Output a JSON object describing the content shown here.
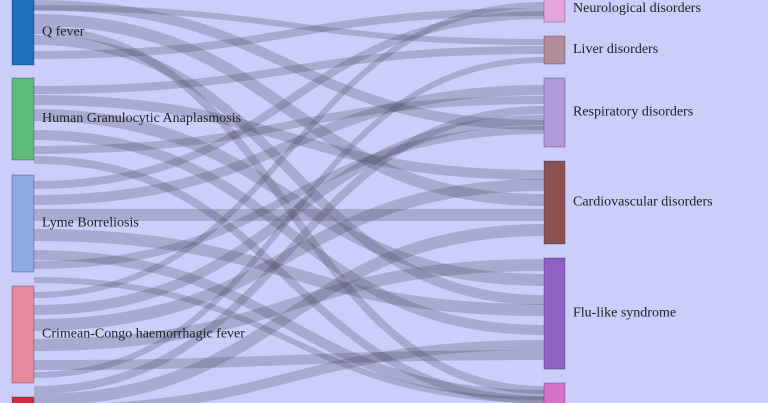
{
  "nodes": {
    "left": [
      {
        "label": "Q fever"
      },
      {
        "label": "Human Granulocytic Anaplasmosis"
      },
      {
        "label": "Lyme Borreliosis"
      },
      {
        "label": "Crimean-Congo haemorrhagic fever"
      }
    ],
    "right": [
      {
        "label": "Neurological disorders"
      },
      {
        "label": "Liver disorders"
      },
      {
        "label": "Respiratory disorders"
      },
      {
        "label": "Cardiovascular disorders"
      },
      {
        "label": "Flu-like syndrome"
      }
    ]
  }
}
